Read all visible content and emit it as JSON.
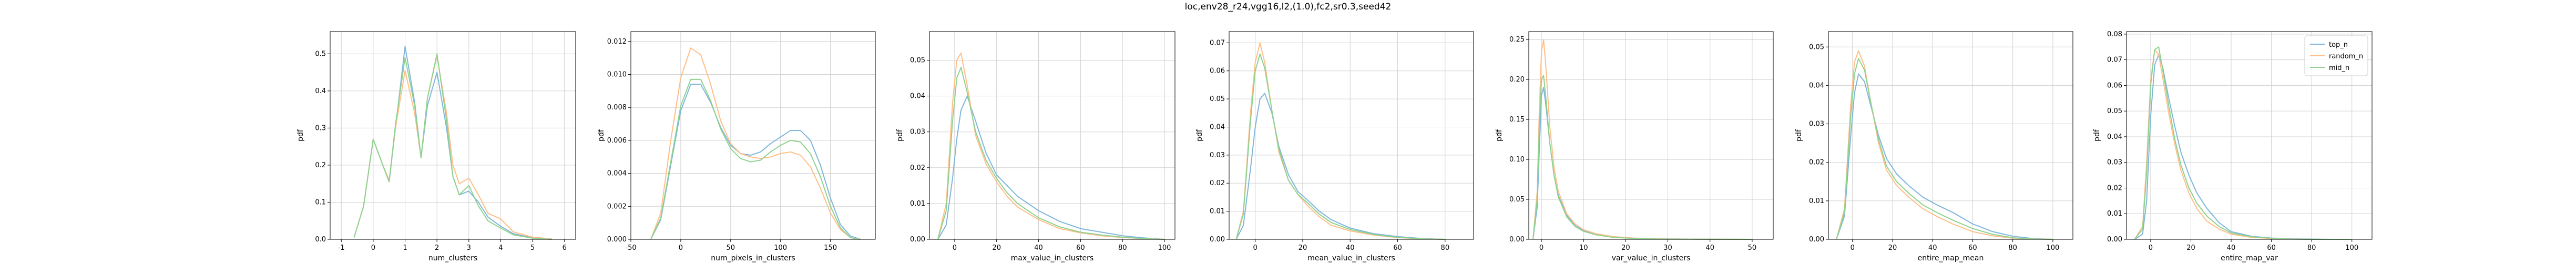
{
  "figure": {
    "suptitle": "loc,env28_r24,vgg16,l2,(1.0),fc2,sr0.3,seed42"
  },
  "colors": {
    "top_n": "#7fb6dc",
    "random_n": "#ffbe86",
    "mid_n": "#8fd28f",
    "grid": "#d0d0d0",
    "axis": "#000000"
  },
  "legend": {
    "placement": "top-right",
    "entries": [
      "top_n",
      "random_n",
      "mid_n"
    ]
  },
  "chart_data": [
    {
      "type": "line",
      "title": "",
      "xlabel": "num_clusters",
      "ylabel": "pdf",
      "xlim": [
        -1.35,
        6.35
      ],
      "ylim": [
        0,
        0.56
      ],
      "xticks": [
        -1,
        0,
        1,
        2,
        3,
        4,
        5,
        6
      ],
      "yticks": [
        0.0,
        0.1,
        0.2,
        0.3,
        0.4,
        0.5
      ],
      "grid": true,
      "x": [
        -0.6,
        -0.3,
        0,
        0.3,
        0.5,
        0.7,
        1,
        1.3,
        1.5,
        1.7,
        2,
        2.3,
        2.5,
        2.7,
        3,
        3.3,
        3.6,
        4,
        4.4,
        5,
        5.6
      ],
      "series": [
        {
          "name": "top_n",
          "values": [
            0.005,
            0.09,
            0.27,
            0.2,
            0.155,
            0.3,
            0.52,
            0.37,
            0.22,
            0.36,
            0.45,
            0.3,
            0.17,
            0.12,
            0.13,
            0.1,
            0.06,
            0.035,
            0.015,
            0.004,
            0.0
          ]
        },
        {
          "name": "random_n",
          "values": [
            0.005,
            0.09,
            0.27,
            0.2,
            0.16,
            0.3,
            0.455,
            0.34,
            0.22,
            0.38,
            0.495,
            0.34,
            0.2,
            0.15,
            0.165,
            0.12,
            0.07,
            0.055,
            0.02,
            0.006,
            0.001
          ]
        },
        {
          "name": "mid_n",
          "values": [
            0.005,
            0.09,
            0.27,
            0.2,
            0.155,
            0.31,
            0.49,
            0.36,
            0.22,
            0.38,
            0.5,
            0.32,
            0.17,
            0.12,
            0.145,
            0.09,
            0.05,
            0.03,
            0.012,
            0.003,
            0.0
          ]
        }
      ]
    },
    {
      "type": "line",
      "title": "",
      "xlabel": "num_pixels_in_clusters",
      "ylabel": "pdf",
      "xlim": [
        -50,
        195
      ],
      "ylim": [
        0,
        0.0126
      ],
      "xticks": [
        -50,
        0,
        50,
        100,
        150
      ],
      "yticks": [
        0.0,
        0.002,
        0.004,
        0.006,
        0.008,
        0.01,
        0.012
      ],
      "grid": true,
      "x": [
        -30,
        -20,
        -10,
        0,
        10,
        20,
        30,
        40,
        50,
        60,
        70,
        80,
        90,
        100,
        110,
        120,
        130,
        140,
        150,
        160,
        170,
        180
      ],
      "series": [
        {
          "name": "top_n",
          "values": [
            0.0,
            0.0012,
            0.0045,
            0.0078,
            0.0094,
            0.0094,
            0.0083,
            0.0068,
            0.0057,
            0.0052,
            0.0051,
            0.0053,
            0.0058,
            0.0062,
            0.0066,
            0.0066,
            0.006,
            0.0045,
            0.0025,
            0.0009,
            0.0002,
            0.0
          ]
        },
        {
          "name": "random_n",
          "values": [
            0.0,
            0.0016,
            0.006,
            0.0098,
            0.0116,
            0.0112,
            0.0094,
            0.0072,
            0.0058,
            0.0052,
            0.005,
            0.0049,
            0.005,
            0.0052,
            0.0053,
            0.0051,
            0.0044,
            0.0031,
            0.0016,
            0.0006,
            0.0001,
            0.0
          ]
        },
        {
          "name": "mid_n",
          "values": [
            0.0,
            0.0013,
            0.0047,
            0.0081,
            0.0097,
            0.0097,
            0.0084,
            0.0067,
            0.0055,
            0.0049,
            0.0047,
            0.0048,
            0.0053,
            0.0057,
            0.006,
            0.0059,
            0.0052,
            0.0038,
            0.002,
            0.0007,
            0.0001,
            0.0
          ]
        }
      ]
    },
    {
      "type": "line",
      "title": "",
      "xlabel": "max_value_in_clusters",
      "ylabel": "pdf",
      "xlim": [
        -12,
        105
      ],
      "ylim": [
        0,
        0.058
      ],
      "xticks": [
        0,
        20,
        40,
        60,
        80,
        100
      ],
      "yticks": [
        0.0,
        0.01,
        0.02,
        0.03,
        0.04,
        0.05
      ],
      "grid": true,
      "x": [
        -8,
        -4,
        -1,
        1,
        3,
        6,
        10,
        15,
        20,
        25,
        30,
        40,
        50,
        60,
        70,
        80,
        90,
        100
      ],
      "series": [
        {
          "name": "top_n",
          "values": [
            0.0,
            0.004,
            0.017,
            0.028,
            0.036,
            0.04,
            0.033,
            0.024,
            0.018,
            0.015,
            0.012,
            0.008,
            0.005,
            0.003,
            0.002,
            0.001,
            0.0004,
            0.0
          ]
        },
        {
          "name": "random_n",
          "values": [
            0.0,
            0.01,
            0.038,
            0.05,
            0.052,
            0.043,
            0.029,
            0.021,
            0.016,
            0.012,
            0.009,
            0.0055,
            0.003,
            0.0018,
            0.001,
            0.0005,
            0.0002,
            0.0
          ]
        },
        {
          "name": "mid_n",
          "values": [
            0.0,
            0.008,
            0.033,
            0.045,
            0.048,
            0.041,
            0.03,
            0.022,
            0.017,
            0.013,
            0.01,
            0.006,
            0.0035,
            0.002,
            0.0012,
            0.0006,
            0.0002,
            0.0
          ]
        }
      ]
    },
    {
      "type": "line",
      "title": "",
      "xlabel": "mean_value_in_clusters",
      "ylabel": "pdf",
      "xlim": [
        -11,
        92
      ],
      "ylim": [
        0,
        0.074
      ],
      "xticks": [
        0,
        20,
        40,
        60,
        80
      ],
      "yticks": [
        0.0,
        0.01,
        0.02,
        0.03,
        0.04,
        0.05,
        0.06,
        0.07
      ],
      "grid": true,
      "x": [
        -8,
        -5,
        -2,
        0,
        2,
        4,
        7,
        10,
        14,
        18,
        22,
        27,
        32,
        40,
        50,
        60,
        70,
        80
      ],
      "series": [
        {
          "name": "top_n",
          "values": [
            0.0,
            0.005,
            0.025,
            0.04,
            0.05,
            0.052,
            0.045,
            0.033,
            0.023,
            0.017,
            0.014,
            0.01,
            0.007,
            0.004,
            0.002,
            0.001,
            0.0003,
            0.0
          ]
        },
        {
          "name": "random_n",
          "values": [
            0.0,
            0.01,
            0.045,
            0.063,
            0.07,
            0.063,
            0.046,
            0.031,
            0.021,
            0.016,
            0.012,
            0.008,
            0.005,
            0.003,
            0.0015,
            0.0006,
            0.0002,
            0.0
          ]
        },
        {
          "name": "mid_n",
          "values": [
            0.0,
            0.009,
            0.042,
            0.06,
            0.066,
            0.061,
            0.046,
            0.032,
            0.021,
            0.016,
            0.013,
            0.009,
            0.006,
            0.0035,
            0.0017,
            0.0007,
            0.0002,
            0.0
          ]
        }
      ]
    },
    {
      "type": "line",
      "title": "",
      "xlabel": "var_value_in_clusters",
      "ylabel": "pdf",
      "xlim": [
        -3,
        55
      ],
      "ylim": [
        0,
        0.26
      ],
      "xticks": [
        0,
        10,
        20,
        30,
        40,
        50
      ],
      "yticks": [
        0.0,
        0.05,
        0.1,
        0.15,
        0.2,
        0.25
      ],
      "grid": true,
      "x": [
        -2,
        -1,
        -0.5,
        0,
        0.5,
        1,
        2,
        3,
        4,
        6,
        8,
        10,
        13,
        17,
        22,
        30,
        40,
        50
      ],
      "series": [
        {
          "name": "top_n",
          "values": [
            0.0,
            0.04,
            0.11,
            0.18,
            0.19,
            0.17,
            0.12,
            0.08,
            0.055,
            0.03,
            0.018,
            0.011,
            0.006,
            0.003,
            0.0015,
            0.0005,
            0.0001,
            0.0
          ]
        },
        {
          "name": "random_n",
          "values": [
            0.0,
            0.06,
            0.16,
            0.235,
            0.25,
            0.22,
            0.14,
            0.09,
            0.06,
            0.032,
            0.019,
            0.012,
            0.007,
            0.0035,
            0.0015,
            0.0005,
            0.0001,
            0.0
          ]
        },
        {
          "name": "mid_n",
          "values": [
            0.0,
            0.05,
            0.14,
            0.2,
            0.205,
            0.18,
            0.12,
            0.08,
            0.053,
            0.028,
            0.016,
            0.01,
            0.0055,
            0.0025,
            0.001,
            0.0003,
            0.0001,
            0.0
          ]
        }
      ]
    },
    {
      "type": "line",
      "title": "",
      "xlabel": "entire_map_mean",
      "ylabel": "pdf",
      "xlim": [
        -12,
        110
      ],
      "ylim": [
        0,
        0.054
      ],
      "xticks": [
        0,
        20,
        40,
        60,
        80,
        100
      ],
      "yticks": [
        0.0,
        0.01,
        0.02,
        0.03,
        0.04,
        0.05
      ],
      "grid": true,
      "x": [
        -8,
        -4,
        -1,
        1,
        3,
        6,
        9,
        13,
        17,
        22,
        28,
        35,
        42,
        50,
        60,
        70,
        80,
        90,
        100
      ],
      "series": [
        {
          "name": "top_n",
          "values": [
            0.0,
            0.006,
            0.026,
            0.038,
            0.043,
            0.041,
            0.035,
            0.027,
            0.021,
            0.017,
            0.014,
            0.011,
            0.009,
            0.007,
            0.004,
            0.002,
            0.0008,
            0.0002,
            0.0
          ]
        },
        {
          "name": "random_n",
          "values": [
            0.0,
            0.008,
            0.034,
            0.046,
            0.049,
            0.045,
            0.036,
            0.025,
            0.018,
            0.014,
            0.011,
            0.008,
            0.006,
            0.004,
            0.002,
            0.0009,
            0.0003,
            0.0001,
            0.0
          ]
        },
        {
          "name": "mid_n",
          "values": [
            0.0,
            0.007,
            0.031,
            0.043,
            0.047,
            0.044,
            0.036,
            0.026,
            0.019,
            0.015,
            0.012,
            0.009,
            0.007,
            0.005,
            0.0028,
            0.0013,
            0.0004,
            0.0001,
            0.0
          ]
        }
      ]
    },
    {
      "type": "line",
      "title": "",
      "xlabel": "entire_map_var",
      "ylabel": "pdf",
      "xlim": [
        -12,
        110
      ],
      "ylim": [
        0,
        0.081
      ],
      "xticks": [
        0,
        20,
        40,
        60,
        80,
        100
      ],
      "yticks": [
        0.0,
        0.01,
        0.02,
        0.03,
        0.04,
        0.05,
        0.06,
        0.07,
        0.08
      ],
      "grid": true,
      "x": [
        -8,
        -4,
        -2,
        0,
        2,
        4,
        6,
        9,
        12,
        15,
        19,
        23,
        28,
        34,
        40,
        50,
        60,
        70,
        80,
        90,
        100
      ],
      "series": [
        {
          "name": "top_n",
          "values": [
            0.0,
            0.002,
            0.015,
            0.048,
            0.068,
            0.072,
            0.067,
            0.055,
            0.044,
            0.034,
            0.025,
            0.018,
            0.012,
            0.0065,
            0.003,
            0.0012,
            0.0005,
            0.0002,
            0.0001,
            0.0,
            0.0
          ]
        },
        {
          "name": "random_n",
          "values": [
            0.0,
            0.005,
            0.03,
            0.062,
            0.074,
            0.072,
            0.063,
            0.049,
            0.037,
            0.027,
            0.018,
            0.012,
            0.007,
            0.004,
            0.002,
            0.0008,
            0.0003,
            0.0001,
            0.0,
            0.0,
            0.0
          ]
        },
        {
          "name": "mid_n",
          "values": [
            0.0,
            0.004,
            0.026,
            0.06,
            0.074,
            0.075,
            0.066,
            0.052,
            0.039,
            0.029,
            0.02,
            0.014,
            0.009,
            0.005,
            0.0025,
            0.001,
            0.0004,
            0.0001,
            0.0,
            0.0,
            0.0
          ]
        }
      ]
    }
  ]
}
